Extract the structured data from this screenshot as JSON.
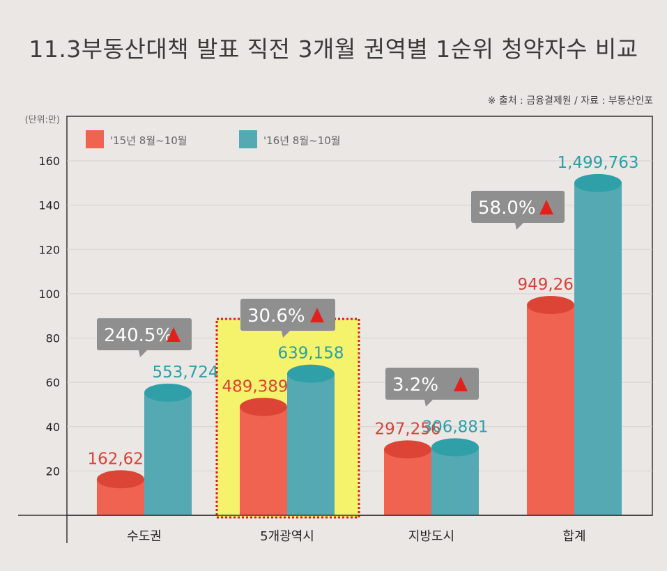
{
  "chart_data": {
    "type": "bar",
    "title": "11.3부동산대책 발표 직전 3개월 권역별 1순위 청약자수 비교",
    "source": "※ 출처 : 금융결제원 / 자료 : 부동산인포",
    "unit_label": "(단위:만)",
    "categories": [
      "수도권",
      "5개광역시",
      "지방도시",
      "합계"
    ],
    "series": [
      {
        "name": "'15년 8월~10월",
        "color": "#f06351",
        "values": [
          162620,
          489389,
          297256,
          949265
        ],
        "labels": [
          "162,620",
          "489,389",
          "297,256",
          "949,265"
        ]
      },
      {
        "name": "'16년 8월~10월",
        "color": "#55a9b2",
        "values": [
          553724,
          639158,
          306881,
          1499763
        ],
        "labels": [
          "553,724",
          "639,158",
          "306,881",
          "1,499,763"
        ]
      }
    ],
    "change_callouts": [
      "240.5%",
      "30.6%",
      "3.2%",
      "58.0%"
    ],
    "change_direction": "up",
    "highlighted_category": "5개광역시",
    "yticks": [
      20,
      40,
      60,
      80,
      100,
      120,
      140,
      160
    ],
    "ylim": [
      0,
      180
    ],
    "grid": true,
    "legend_position": "top-left"
  }
}
